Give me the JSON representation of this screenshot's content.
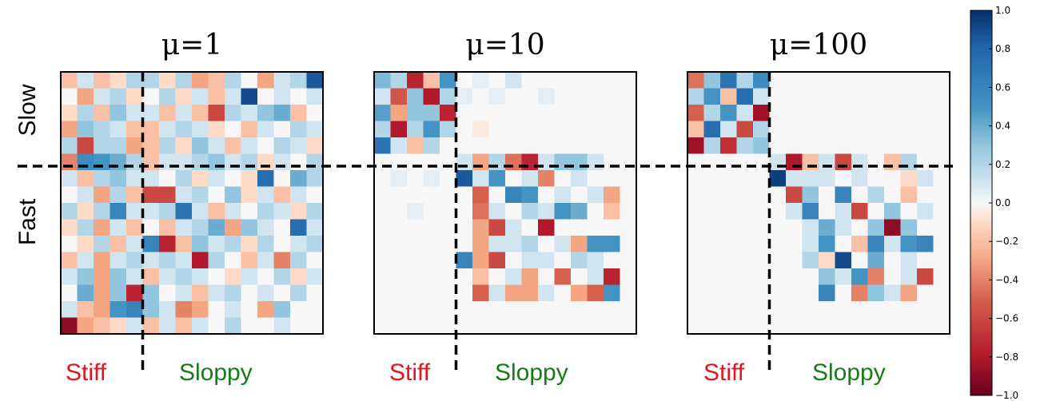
{
  "chart_data": {
    "type": "heatmap",
    "panels": [
      {
        "title": "μ=1",
        "size": 16,
        "split": 5,
        "values": [
          [
            -0.2,
            0.1,
            -0.2,
            -0.1,
            0.2,
            0.2,
            -0.1,
            0.2,
            -0.3,
            -0.2,
            0.2,
            0.0,
            -0.3,
            0.1,
            0.2,
            0.85
          ],
          [
            0.0,
            -0.3,
            0.1,
            0.2,
            -0.1,
            0.0,
            0.2,
            -0.1,
            0.1,
            -0.2,
            0.1,
            0.9,
            0.0,
            0.1,
            0.0,
            0.1
          ],
          [
            -0.1,
            0.2,
            -0.2,
            0.3,
            0.1,
            0.1,
            -0.2,
            0.1,
            -0.2,
            -0.6,
            0.2,
            0.1,
            0.3,
            0.4,
            -0.2,
            0.0
          ],
          [
            -0.3,
            0.3,
            0.2,
            0.1,
            -0.2,
            -0.2,
            0.1,
            0.2,
            0.1,
            -0.1,
            0.0,
            -0.2,
            0.1,
            0.0,
            0.2,
            0.1
          ],
          [
            0.2,
            -0.6,
            0.2,
            0.2,
            -0.3,
            -0.2,
            0.2,
            -0.1,
            0.3,
            0.1,
            -0.2,
            0.1,
            0.0,
            0.2,
            0.1,
            -0.1
          ],
          [
            -0.4,
            0.55,
            0.5,
            0.4,
            0.2,
            -0.2,
            0.1,
            0.1,
            0.2,
            0.3,
            0.1,
            0.2,
            -0.1,
            0.1,
            0.0,
            0.2
          ],
          [
            0.1,
            -0.2,
            0.2,
            0.3,
            0.1,
            0.1,
            0.0,
            0.2,
            -0.1,
            0.1,
            0.0,
            -0.1,
            0.75,
            0.0,
            0.4,
            0.2
          ],
          [
            0.0,
            0.1,
            -0.3,
            0.2,
            -0.2,
            -0.6,
            -0.6,
            0.1,
            0.2,
            0.0,
            0.3,
            -0.1,
            0.1,
            -0.2,
            0.1,
            0.0
          ],
          [
            0.2,
            -0.1,
            0.2,
            0.6,
            0.1,
            0.1,
            0.2,
            0.7,
            0.1,
            -0.2,
            0.1,
            0.0,
            0.2,
            0.1,
            -0.1,
            0.2
          ],
          [
            -0.1,
            0.2,
            -0.3,
            0.1,
            -0.2,
            0.0,
            -0.2,
            0.1,
            0.2,
            0.4,
            -0.3,
            0.3,
            0.1,
            0.0,
            0.75,
            0.1
          ],
          [
            0.0,
            -0.1,
            0.2,
            -0.2,
            0.1,
            0.6,
            -0.75,
            -0.2,
            0.3,
            0.1,
            0.2,
            -0.1,
            0.2,
            0.0,
            0.1,
            0.2
          ],
          [
            -0.2,
            0.1,
            -0.3,
            0.1,
            0.2,
            0.1,
            0.2,
            0.1,
            -0.8,
            0.2,
            0.0,
            -0.2,
            0.1,
            -0.4,
            0.2,
            0.0
          ],
          [
            0.1,
            0.3,
            -0.3,
            0.3,
            0.1,
            -0.2,
            0.1,
            0.2,
            0.1,
            0.0,
            -0.1,
            0.1,
            0.0,
            0.2,
            -0.1,
            0.1
          ],
          [
            0.0,
            0.4,
            -0.3,
            0.3,
            -0.75,
            0.3,
            0.0,
            0.1,
            -0.2,
            0.1,
            0.2,
            0.0,
            0.1,
            0.0,
            0.2,
            0.0
          ],
          [
            0.1,
            -0.2,
            -0.3,
            0.5,
            0.6,
            0.3,
            0.1,
            -0.4,
            -0.3,
            0.0,
            0.1,
            0.0,
            -0.3,
            0.3,
            0.0,
            0.0
          ],
          [
            -0.9,
            -0.3,
            -0.2,
            -0.1,
            0.1,
            -0.2,
            0.1,
            -0.2,
            0.1,
            0.0,
            0.2,
            0.0,
            0.0,
            0.1,
            0.0,
            0.0
          ]
        ]
      },
      {
        "title": "μ=10",
        "size": 16,
        "split": 5,
        "values": [
          [
            0.35,
            0.2,
            -0.75,
            -0.2,
            0.5,
            0.0,
            0.05,
            0.0,
            0.1,
            0.0,
            0.0,
            0.0,
            0.0,
            0.0,
            0.0,
            0.0
          ],
          [
            0.1,
            -0.55,
            0.3,
            -0.8,
            0.2,
            0.05,
            0.0,
            0.05,
            0.0,
            0.0,
            0.05,
            0.0,
            0.0,
            0.0,
            0.0,
            0.0
          ],
          [
            0.45,
            -0.3,
            0.3,
            0.3,
            -0.75,
            0.0,
            0.0,
            0.0,
            0.0,
            0.0,
            0.0,
            0.0,
            0.0,
            0.0,
            0.0,
            0.0
          ],
          [
            0.2,
            -0.8,
            0.2,
            0.5,
            0.2,
            0.0,
            -0.05,
            0.0,
            0.0,
            0.0,
            0.0,
            0.0,
            0.0,
            0.0,
            0.0,
            0.0
          ],
          [
            0.7,
            0.1,
            -0.2,
            0.2,
            0.0,
            0.0,
            0.0,
            0.0,
            0.0,
            0.0,
            0.0,
            0.0,
            0.0,
            0.0,
            0.0,
            0.0
          ],
          [
            0.0,
            0.0,
            0.0,
            0.0,
            0.0,
            0.1,
            -0.3,
            0.2,
            -0.45,
            -0.75,
            0.1,
            0.3,
            0.3,
            0.1,
            0.0,
            0.0
          ],
          [
            0.0,
            0.05,
            0.0,
            0.05,
            0.0,
            0.85,
            0.1,
            0.5,
            0.0,
            0.1,
            -0.4,
            0.0,
            0.1,
            0.0,
            0.0,
            0.0
          ],
          [
            0.0,
            0.0,
            0.0,
            0.0,
            0.0,
            0.0,
            -0.5,
            0.0,
            0.6,
            0.5,
            0.0,
            0.1,
            0.0,
            0.1,
            -0.3,
            0.0
          ],
          [
            0.0,
            0.0,
            0.05,
            0.0,
            0.0,
            0.0,
            -0.45,
            0.1,
            0.0,
            0.2,
            0.1,
            0.5,
            0.4,
            0.0,
            -0.2,
            0.0
          ],
          [
            0.0,
            0.0,
            0.0,
            0.0,
            0.0,
            0.0,
            -0.3,
            -0.6,
            0.1,
            0.0,
            -0.8,
            0.0,
            0.0,
            0.0,
            0.0,
            0.0
          ],
          [
            0.0,
            0.0,
            0.0,
            0.0,
            0.0,
            0.0,
            -0.3,
            0.1,
            0.1,
            0.2,
            0.0,
            0.1,
            -0.3,
            0.5,
            0.5,
            0.0
          ],
          [
            0.0,
            0.0,
            0.0,
            0.0,
            0.0,
            0.6,
            -0.3,
            -0.6,
            0.0,
            0.1,
            0.1,
            0.0,
            0.2,
            0.1,
            0.0,
            0.0
          ],
          [
            0.0,
            0.0,
            0.0,
            0.0,
            0.0,
            0.0,
            -0.2,
            0.0,
            0.1,
            -0.3,
            0.0,
            -0.5,
            0.0,
            0.1,
            -0.75,
            0.0
          ],
          [
            0.0,
            0.0,
            0.0,
            0.0,
            0.0,
            0.0,
            -0.5,
            0.1,
            -0.3,
            -0.3,
            0.1,
            0.0,
            -0.3,
            -0.5,
            0.5,
            0.0
          ],
          [
            0.0,
            0.0,
            0.0,
            0.0,
            0.0,
            0.0,
            0.0,
            0.0,
            0.0,
            0.0,
            0.0,
            0.0,
            0.0,
            0.0,
            0.0,
            0.0
          ],
          [
            0.0,
            0.0,
            0.0,
            0.0,
            0.0,
            0.0,
            0.0,
            0.0,
            0.0,
            0.0,
            0.0,
            0.0,
            0.0,
            0.0,
            0.0,
            0.0
          ]
        ]
      },
      {
        "title": "μ=100",
        "size": 16,
        "split": 5,
        "values": [
          [
            -0.45,
            0.3,
            0.7,
            0.2,
            0.55,
            0.0,
            0.0,
            0.0,
            0.0,
            0.0,
            0.0,
            0.0,
            0.0,
            0.0,
            0.0,
            0.0
          ],
          [
            0.2,
            0.5,
            -0.2,
            0.75,
            0.1,
            0.0,
            0.0,
            0.0,
            0.0,
            0.0,
            0.0,
            0.0,
            0.0,
            0.0,
            0.0,
            0.0
          ],
          [
            -0.5,
            0.2,
            0.5,
            0.1,
            -0.85,
            0.0,
            0.0,
            0.0,
            0.0,
            0.0,
            0.0,
            0.0,
            0.0,
            0.0,
            0.0,
            0.0
          ],
          [
            -0.2,
            0.75,
            0.1,
            -0.6,
            0.2,
            0.0,
            0.0,
            0.0,
            0.0,
            0.0,
            0.0,
            0.0,
            0.0,
            0.0,
            0.0,
            0.0
          ],
          [
            -0.85,
            0.2,
            -0.7,
            0.2,
            0.3,
            0.0,
            0.0,
            0.0,
            0.0,
            0.0,
            0.0,
            0.0,
            0.0,
            0.0,
            0.0,
            0.0
          ],
          [
            0.0,
            0.0,
            0.0,
            0.0,
            0.0,
            0.1,
            -0.8,
            -0.2,
            0.1,
            -0.6,
            0.1,
            0.0,
            -0.2,
            0.2,
            0.0,
            0.0
          ],
          [
            0.0,
            0.0,
            0.0,
            0.0,
            0.0,
            0.95,
            0.1,
            0.1,
            0.1,
            0.0,
            0.1,
            0.0,
            0.0,
            -0.1,
            0.1,
            0.0
          ],
          [
            0.0,
            0.0,
            0.0,
            0.0,
            0.0,
            0.0,
            -0.6,
            0.3,
            0.0,
            0.6,
            0.0,
            0.2,
            0.0,
            -0.2,
            0.0,
            0.0
          ],
          [
            0.0,
            0.0,
            0.0,
            0.0,
            0.0,
            0.0,
            0.1,
            0.6,
            0.0,
            0.1,
            -0.6,
            0.0,
            0.3,
            0.0,
            0.1,
            0.0
          ],
          [
            0.0,
            0.0,
            0.0,
            0.0,
            0.0,
            0.0,
            0.0,
            0.1,
            0.4,
            0.1,
            0.0,
            0.3,
            -0.9,
            0.3,
            0.0,
            0.0
          ],
          [
            0.0,
            0.0,
            0.0,
            0.0,
            0.0,
            0.0,
            0.0,
            0.1,
            0.5,
            0.0,
            -0.2,
            0.6,
            0.1,
            0.5,
            0.6,
            0.0
          ],
          [
            0.0,
            0.0,
            0.0,
            0.0,
            0.0,
            0.0,
            0.0,
            0.2,
            -0.1,
            0.9,
            0.0,
            0.4,
            0.0,
            0.1,
            0.0,
            0.0
          ],
          [
            0.0,
            0.0,
            0.0,
            0.0,
            0.0,
            0.0,
            0.0,
            0.0,
            0.3,
            0.1,
            0.5,
            -0.4,
            0.0,
            0.1,
            -0.6,
            0.0
          ],
          [
            0.0,
            0.0,
            0.0,
            0.0,
            0.0,
            0.0,
            0.0,
            0.0,
            0.6,
            0.0,
            -0.4,
            0.3,
            0.1,
            -0.3,
            0.0,
            0.0
          ],
          [
            0.0,
            0.0,
            0.0,
            0.0,
            0.0,
            0.0,
            0.0,
            0.0,
            0.0,
            0.0,
            0.0,
            0.0,
            0.0,
            0.0,
            0.0,
            0.0
          ],
          [
            0.0,
            0.0,
            0.0,
            0.0,
            0.0,
            0.0,
            0.0,
            0.0,
            0.0,
            0.0,
            0.0,
            0.0,
            0.0,
            0.0,
            0.0,
            0.0
          ]
        ]
      }
    ],
    "row_labels": [
      "Slow",
      "Fast"
    ],
    "column_labels": [
      "Stiff",
      "Sloppy"
    ],
    "colorbar": {
      "range": [
        -1.0,
        1.0
      ],
      "ticks": [
        "1.0",
        "0.8",
        "0.6",
        "0.4",
        "0.2",
        "0.0",
        "−0.2",
        "−0.4",
        "−0.6",
        "−0.8",
        "−1.0"
      ],
      "colormap": "RdBu"
    },
    "colors": {
      "stiff_label": "#e8141c",
      "sloppy_label": "#1a7a1a"
    }
  }
}
